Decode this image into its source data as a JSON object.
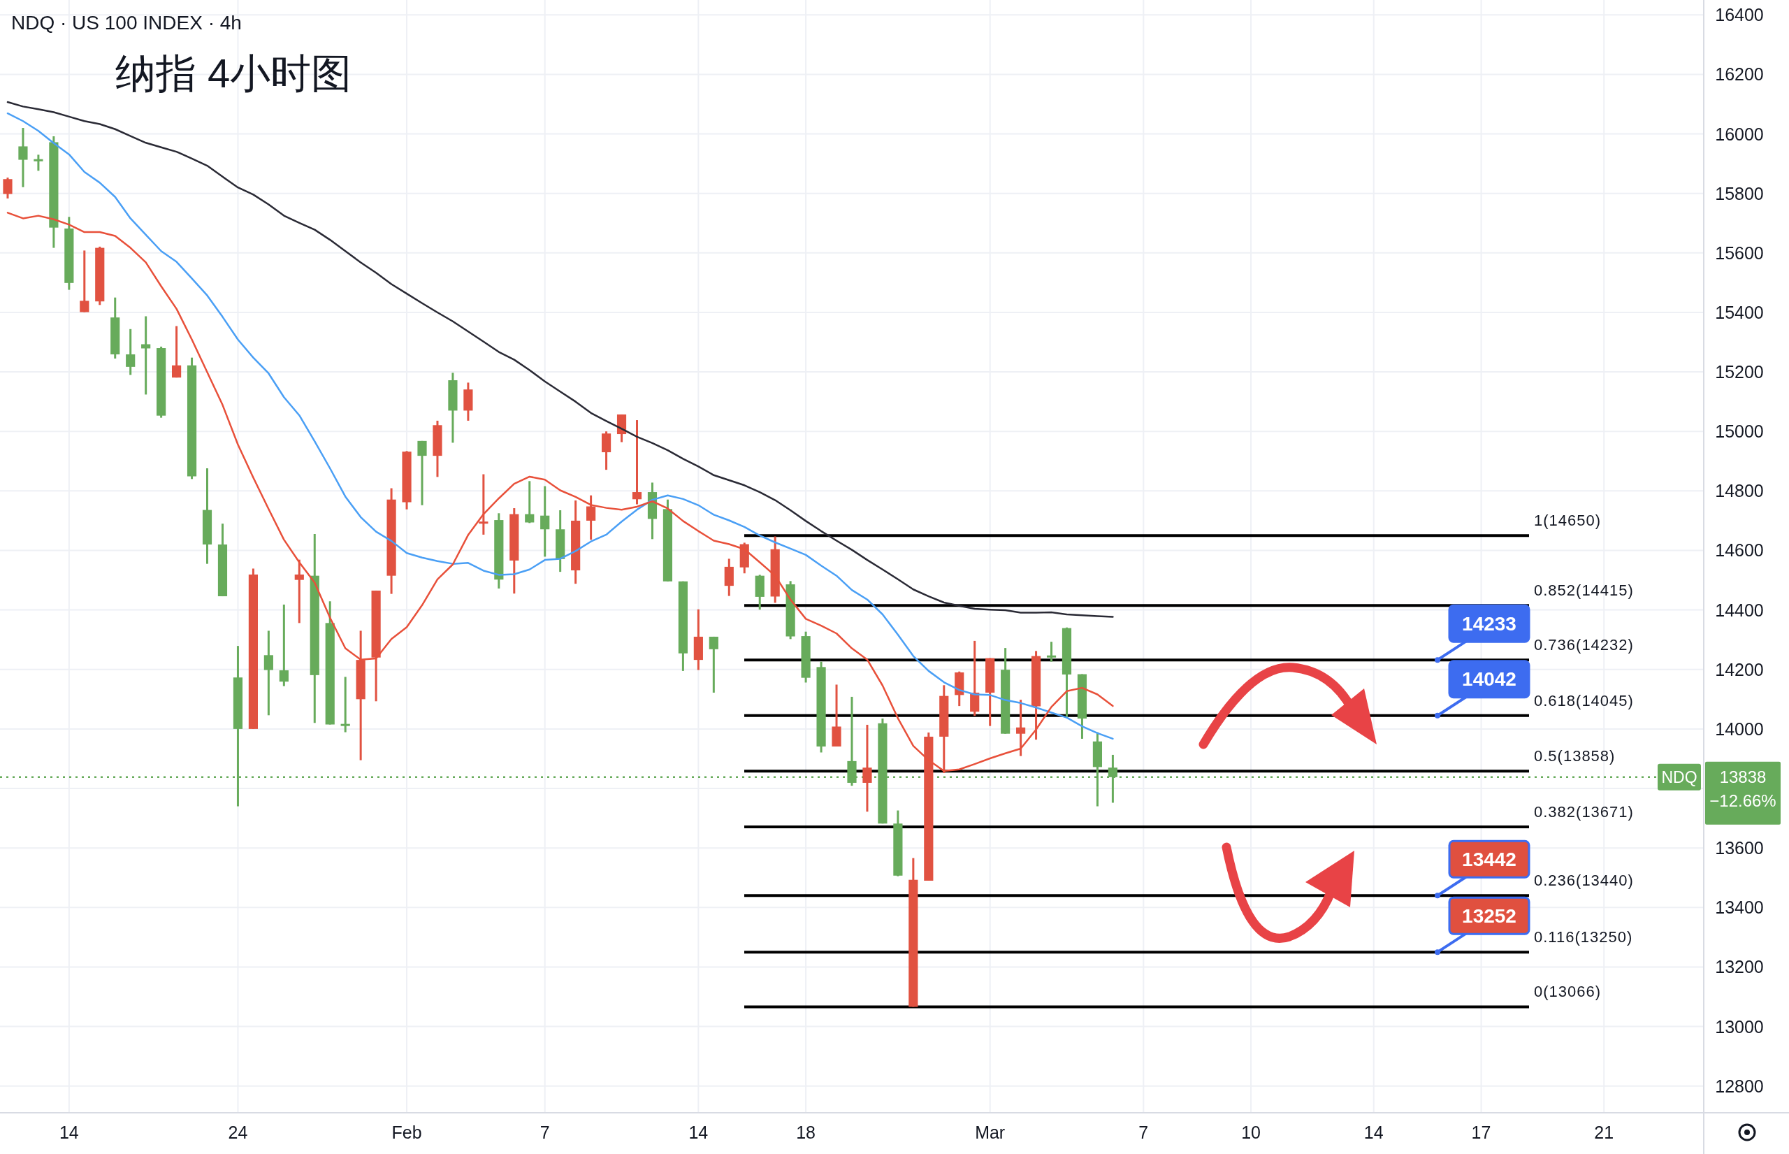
{
  "chart_data": {
    "type": "candlestick",
    "title": "纳指 4小时图",
    "subtitle": "NDQ · US 100 INDEX · 4h",
    "categories": [
      null,
      null,
      null,
      null,
      "14",
      null,
      null,
      null,
      null,
      null,
      null,
      null,
      null,
      null,
      null,
      "24",
      null,
      null,
      null,
      null,
      null,
      null,
      null,
      null,
      null,
      null,
      "Feb",
      null,
      null,
      null,
      null,
      null,
      null,
      null,
      null,
      "7",
      null,
      null,
      null,
      null,
      null,
      null,
      null,
      null,
      null,
      "14",
      null,
      null,
      null,
      null,
      null,
      null,
      "18",
      null,
      null,
      null,
      null,
      null,
      null,
      null,
      null,
      null,
      null,
      null,
      "Mar",
      null,
      null,
      null,
      null,
      null,
      null,
      null,
      null,
      null,
      "7",
      null,
      null,
      null,
      null,
      null,
      null,
      "10",
      null,
      null,
      null,
      null,
      null,
      null,
      null,
      "14",
      null,
      null,
      null,
      null,
      null,
      null,
      "17",
      null,
      null,
      null,
      null,
      null,
      null,
      null,
      "21",
      null,
      null,
      null,
      null,
      null,
      null
    ],
    "ohlc": [
      [
        15798,
        15853,
        15783,
        15848
      ],
      [
        15958,
        16020,
        15821,
        15913
      ],
      [
        15915,
        15930,
        15876,
        15913
      ],
      [
        15972,
        15992,
        15617,
        15685
      ],
      [
        15682,
        15721,
        15476,
        15499
      ],
      [
        15401,
        15608,
        15401,
        15439
      ],
      [
        15437,
        15621,
        15425,
        15617
      ],
      [
        15383,
        15450,
        15245,
        15259
      ],
      [
        15259,
        15344,
        15190,
        15217
      ],
      [
        15293,
        15387,
        15124,
        15279
      ],
      [
        15280,
        15285,
        15046,
        15053
      ],
      [
        15181,
        15354,
        15181,
        15222
      ],
      [
        15222,
        15248,
        14840,
        14849
      ],
      [
        14736,
        14876,
        14555,
        14620
      ],
      [
        14620,
        14690,
        14446,
        14446
      ],
      [
        14173,
        14279,
        13740,
        14000
      ],
      [
        14000,
        14539,
        14000,
        14519
      ],
      [
        14248,
        14330,
        14046,
        14198
      ],
      [
        14197,
        14418,
        14144,
        14159
      ],
      [
        14501,
        14569,
        14356,
        14519
      ],
      [
        14515,
        14655,
        14020,
        14181
      ],
      [
        14356,
        14429,
        14015,
        14015
      ],
      [
        14017,
        14175,
        13989,
        14015
      ],
      [
        14100,
        14330,
        13895,
        14232
      ],
      [
        14240,
        14465,
        14093,
        14465
      ],
      [
        14515,
        14809,
        14454,
        14771
      ],
      [
        14762,
        14934,
        14738,
        14932
      ],
      [
        14968,
        14968,
        14752,
        14918
      ],
      [
        14918,
        15036,
        14847,
        15021
      ],
      [
        15172,
        15197,
        14962,
        15070
      ],
      [
        15070,
        15164,
        15036,
        15141
      ],
      [
        14695,
        14856,
        14653,
        14697
      ],
      [
        14702,
        14725,
        14472,
        14502
      ],
      [
        14566,
        14742,
        14455,
        14722
      ],
      [
        14722,
        14833,
        14692,
        14694
      ],
      [
        14717,
        14816,
        14579,
        14671
      ],
      [
        14671,
        14735,
        14528,
        14571
      ],
      [
        14533,
        14768,
        14488,
        14700
      ],
      [
        14700,
        14785,
        14636,
        14748
      ],
      [
        14930,
        15000,
        14871,
        14993
      ],
      [
        14991,
        15057,
        14964,
        15057
      ],
      [
        14772,
        15038,
        14755,
        14796
      ],
      [
        14796,
        14828,
        14638,
        14706
      ],
      [
        14739,
        14771,
        14496,
        14496
      ],
      [
        14496,
        14496,
        14195,
        14254
      ],
      [
        14232,
        14402,
        14198,
        14310
      ],
      [
        14310,
        14310,
        14122,
        14268
      ],
      [
        14481,
        14572,
        14447,
        14545
      ],
      [
        14543,
        14626,
        14523,
        14621
      ],
      [
        14515,
        14518,
        14401,
        14444
      ],
      [
        14445,
        14647,
        14424,
        14604
      ],
      [
        14486,
        14497,
        14302,
        14311
      ],
      [
        14312,
        14327,
        14156,
        14172
      ],
      [
        14208,
        14226,
        13921,
        13941
      ],
      [
        13941,
        14149,
        13941,
        14008
      ],
      [
        13892,
        14108,
        13809,
        13819
      ],
      [
        13819,
        14014,
        13722,
        13870
      ],
      [
        14019,
        14035,
        13682,
        13682
      ],
      [
        13682,
        13726,
        13505,
        13507
      ],
      [
        13066,
        13566,
        13066,
        13493
      ],
      [
        13490,
        13988,
        13490,
        13974
      ],
      [
        13974,
        14147,
        13852,
        14111
      ],
      [
        14114,
        14193,
        14077,
        14190
      ],
      [
        14058,
        14296,
        14044,
        14122
      ],
      [
        14122,
        14238,
        14010,
        14238
      ],
      [
        14199,
        14272,
        13984,
        13984
      ],
      [
        13984,
        14098,
        13909,
        14005
      ],
      [
        14076,
        14262,
        13964,
        14245
      ],
      [
        14247,
        14293,
        14226,
        14245
      ],
      [
        14339,
        14341,
        14037,
        14183
      ],
      [
        14184,
        14184,
        13967,
        14035
      ],
      [
        13958,
        13989,
        13740,
        13872
      ],
      [
        13870,
        13913,
        13752,
        13838
      ],
      null,
      null,
      null,
      null,
      null,
      null,
      null,
      null,
      null,
      null,
      null,
      null,
      null,
      null,
      null,
      null,
      null,
      null,
      null,
      null,
      null,
      null,
      null,
      null,
      null,
      null,
      null,
      null,
      null,
      null,
      null,
      null,
      null,
      null,
      null,
      null,
      null,
      null
    ],
    "colors": [
      "#e15241",
      "#67ab5b",
      "#67ab5b",
      "#67ab5b",
      "#67ab5b",
      "#e15241",
      "#e15241",
      "#67ab5b",
      "#67ab5b",
      "#67ab5b",
      "#67ab5b",
      "#e15241",
      "#67ab5b",
      "#67ab5b",
      "#67ab5b",
      "#67ab5b",
      "#e15241",
      "#67ab5b",
      "#67ab5b",
      "#e15241",
      "#67ab5b",
      "#67ab5b",
      "#67ab5b",
      "#e15241",
      "#e15241",
      "#e15241",
      "#e15241",
      "#67ab5b",
      "#e15241",
      "#67ab5b",
      "#e15241",
      "#e15241",
      "#67ab5b",
      "#e15241",
      "#67ab5b",
      "#67ab5b",
      "#67ab5b",
      "#e15241",
      "#e15241",
      "#e15241",
      "#e15241",
      "#e15241",
      "#67ab5b",
      "#67ab5b",
      "#67ab5b",
      "#e15241",
      "#67ab5b",
      "#e15241",
      "#e15241",
      "#67ab5b",
      "#e15241",
      "#67ab5b",
      "#67ab5b",
      "#67ab5b",
      "#e15241",
      "#67ab5b",
      "#e15241",
      "#67ab5b",
      "#67ab5b",
      "#e15241",
      "#e15241",
      "#e15241",
      "#e15241",
      "#e15241",
      "#e15241",
      "#67ab5b",
      "#e15241",
      "#e15241",
      "#67ab5b",
      "#67ab5b",
      "#67ab5b",
      "#67ab5b",
      "#67ab5b",
      null,
      null,
      null,
      null,
      null,
      null,
      null,
      null,
      null,
      null,
      null,
      null,
      null,
      null,
      null,
      null,
      null,
      null,
      null,
      null,
      null,
      null,
      null,
      null,
      null,
      null,
      null,
      null,
      null,
      null,
      null,
      null,
      null,
      null,
      null,
      null,
      null,
      null
    ],
    "series": [
      {
        "type": "line",
        "color": "#2a2a35",
        "values": [
          16107,
          16092,
          16083,
          16073,
          16058,
          16043,
          16033,
          16016,
          15993,
          15970,
          15955,
          15940,
          15917,
          15893,
          15856,
          15820,
          15796,
          15763,
          15725,
          15701,
          15678,
          15644,
          15606,
          15568,
          15533,
          15495,
          15463,
          15431,
          15400,
          15370,
          15336,
          15302,
          15267,
          15241,
          15206,
          15168,
          15134,
          15100,
          15062,
          15035,
          15009,
          14982,
          14961,
          14937,
          14908,
          14882,
          14853,
          14836,
          14819,
          14796,
          14769,
          14735,
          14699,
          14665,
          14633,
          14602,
          14568,
          14536,
          14503,
          14469,
          14446,
          14425,
          14414,
          14404,
          14401,
          14399,
          14391,
          14391,
          14392,
          14385,
          14382,
          14379,
          14377,
          null,
          null,
          null,
          null,
          null,
          null,
          null,
          null,
          null,
          null,
          null,
          null,
          null,
          null,
          null,
          null,
          null,
          null,
          null,
          null,
          null,
          null,
          null,
          null,
          null,
          null,
          null,
          null,
          null,
          null,
          null,
          null,
          null,
          null,
          null,
          null,
          null,
          null
        ]
      },
      {
        "type": "line",
        "color": "#4a9ff5",
        "values": [
          16069,
          16043,
          16010,
          15969,
          15931,
          15872,
          15836,
          15788,
          15716,
          15661,
          15606,
          15570,
          15514,
          15457,
          15385,
          15309,
          15248,
          15195,
          15115,
          15054,
          14967,
          14876,
          14781,
          14712,
          14663,
          14632,
          14591,
          14576,
          14564,
          14555,
          14558,
          14532,
          14518,
          14520,
          14536,
          14568,
          14572,
          14598,
          14630,
          14653,
          14697,
          14737,
          14770,
          14785,
          14773,
          14752,
          14720,
          14701,
          14679,
          14650,
          14627,
          14606,
          14585,
          14549,
          14515,
          14467,
          14435,
          14385,
          14317,
          14245,
          14195,
          14157,
          14131,
          14116,
          14114,
          14097,
          14087,
          14072,
          14055,
          14038,
          14009,
          13986,
          13967,
          null,
          null,
          null,
          null,
          null,
          null,
          null,
          null,
          null,
          null,
          null,
          null,
          null,
          null,
          null,
          null,
          null,
          null,
          null,
          null,
          null,
          null,
          null,
          null,
          null,
          null,
          null,
          null,
          null,
          null,
          null,
          null,
          null,
          null,
          null,
          null,
          null,
          null
        ]
      },
      {
        "type": "line",
        "color": "#e8503a",
        "values": [
          15735,
          15716,
          15725,
          15713,
          15695,
          15670,
          15670,
          15657,
          15617,
          15568,
          15488,
          15412,
          15309,
          15199,
          15089,
          14956,
          14845,
          14739,
          14636,
          14560,
          14492,
          14374,
          14271,
          14233,
          14237,
          14302,
          14342,
          14416,
          14503,
          14553,
          14652,
          14722,
          14775,
          14824,
          14848,
          14838,
          14802,
          14780,
          14753,
          14743,
          14737,
          14747,
          14765,
          14741,
          14699,
          14665,
          14633,
          14621,
          14604,
          14560,
          14515,
          14435,
          14370,
          14347,
          14321,
          14271,
          14233,
          14146,
          14036,
          13943,
          13895,
          13859,
          13864,
          13882,
          13901,
          13918,
          13934,
          13998,
          14074,
          14127,
          14138,
          14116,
          14077,
          null,
          null,
          null,
          null,
          null,
          null,
          null,
          null,
          null,
          null,
          null,
          null,
          null,
          null,
          null,
          null,
          null,
          null,
          null,
          null,
          null,
          null,
          null,
          null,
          null,
          null,
          null,
          null,
          null,
          null,
          null,
          null,
          null,
          null,
          null,
          null,
          null,
          null
        ]
      }
    ],
    "ylim": [
      12710,
      16450
    ],
    "yticks": [
      12800,
      13000,
      13200,
      13400,
      13600,
      {
        "value": 13800,
        "label": null
      },
      14000,
      14200,
      14400,
      14600,
      14800,
      15000,
      15200,
      15400,
      15600,
      15800,
      16000,
      16200,
      16400
    ],
    "grid": true,
    "ref_lines": [
      {
        "axis": "y",
        "value": 14650,
        "label": "1(14650)",
        "color": "#000000"
      },
      {
        "axis": "y",
        "value": 14415,
        "label": "0.852(14415)",
        "color": "#000000"
      },
      {
        "axis": "y",
        "value": 14232,
        "label": "0.736(14232)",
        "color": "#000000"
      },
      {
        "axis": "y",
        "value": 14045,
        "label": "0.618(14045)",
        "color": "#000000"
      },
      {
        "axis": "y",
        "value": 13858,
        "label": "0.5(13858)",
        "color": "#000000"
      },
      {
        "axis": "y",
        "value": 13671,
        "label": "0.382(13671)",
        "color": "#000000"
      },
      {
        "axis": "y",
        "value": 13440,
        "label": "0.236(13440)",
        "color": "#000000"
      },
      {
        "axis": "y",
        "value": 13250,
        "label": "0.116(13250)",
        "color": "#000000"
      },
      {
        "axis": "y",
        "value": 13066,
        "label": "0(13066)",
        "color": "#000000"
      },
      {
        "axis": "y",
        "value": 13838,
        "label": "NDQ",
        "color": "#67ab5b",
        "line_style": "dotted"
      }
    ],
    "annotations": [
      {
        "text": "14233",
        "y": 14232
      },
      {
        "text": "14042",
        "y": 14045
      },
      {
        "text": "13442",
        "y": 13440
      },
      {
        "text": "13252",
        "y": 13250
      },
      "13838",
      "−12.66%"
    ]
  }
}
